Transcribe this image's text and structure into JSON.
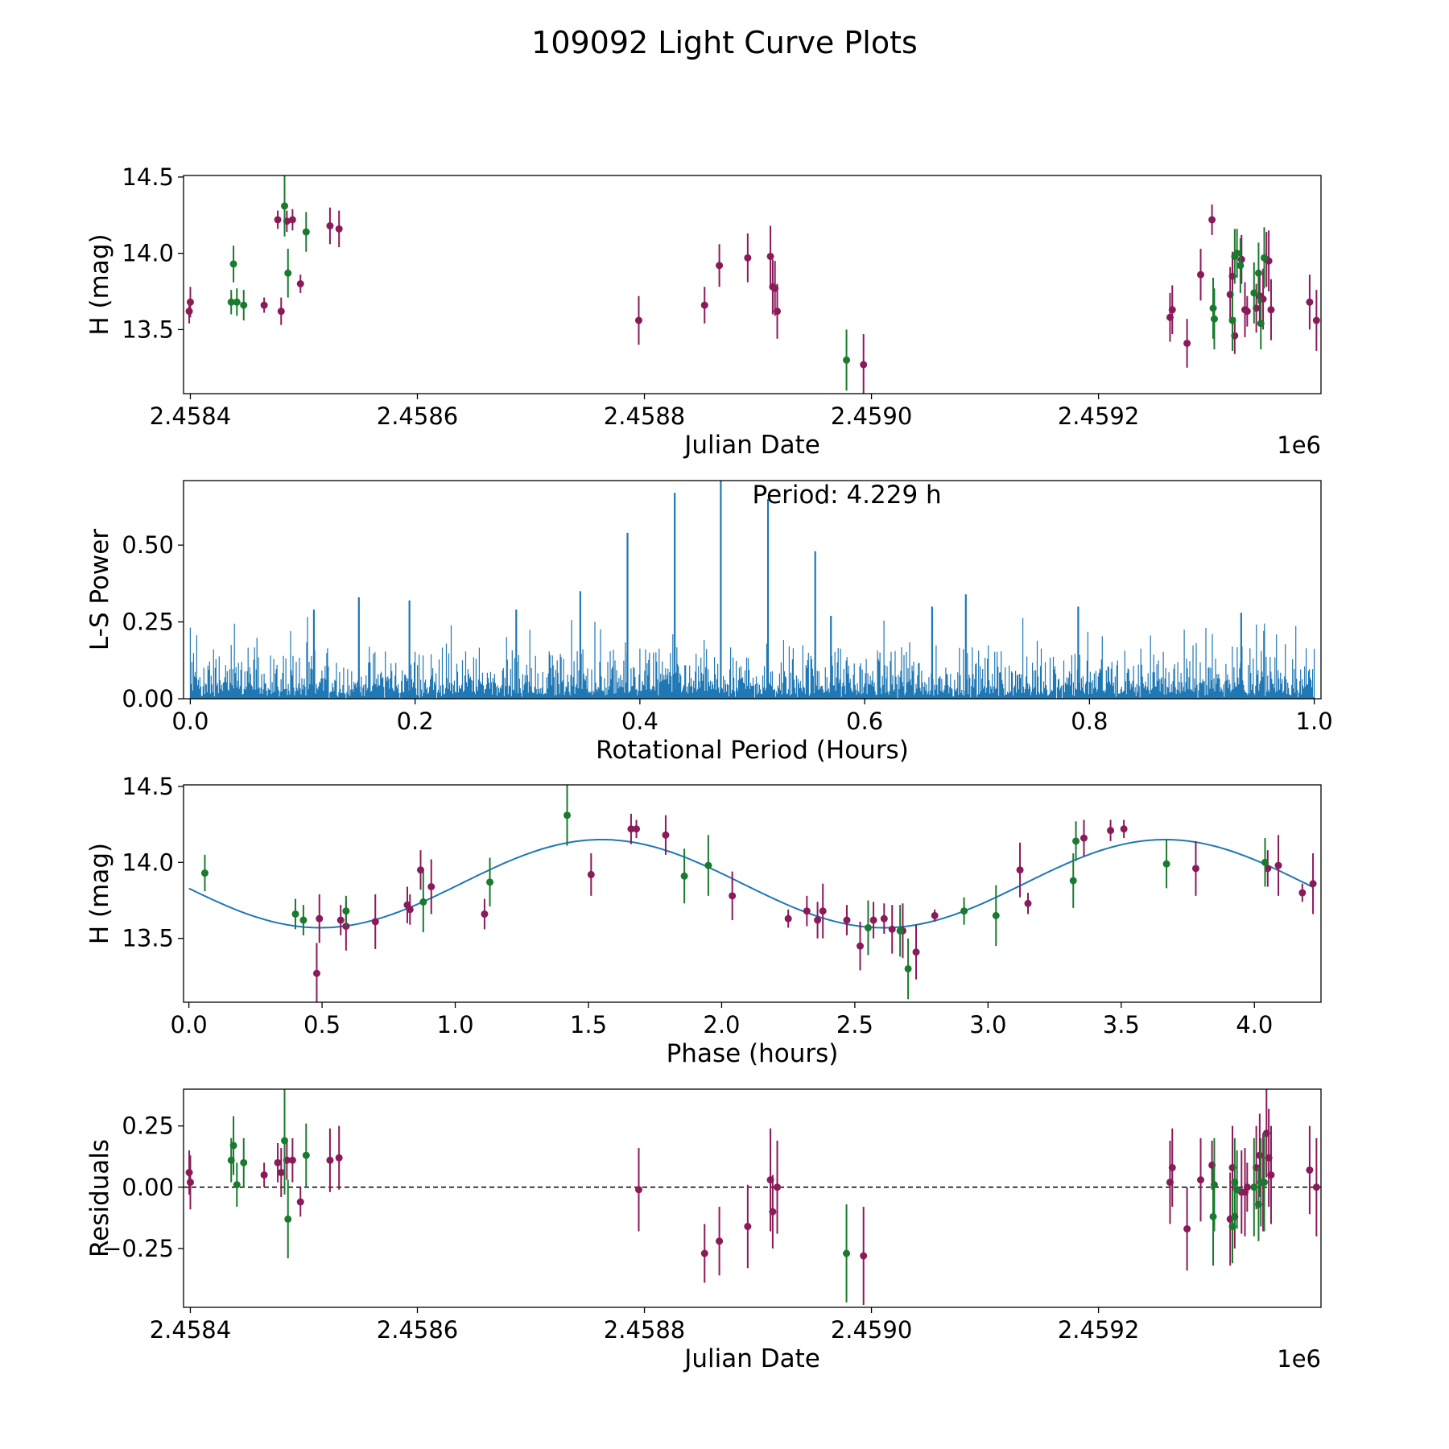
{
  "title": "109092 Light Curve Plots",
  "colors": {
    "purple": "#8b1a5a",
    "green": "#1a7a2e",
    "blue": "#1f77b4",
    "black": "#000000"
  },
  "chart_data": [
    {
      "type": "scatter",
      "name": "light-curve",
      "xlabel": "Julian Date",
      "ylabel": "H (mag)",
      "offset_label": "1e6",
      "xlim": [
        2458394,
        2459396
      ],
      "ylim": [
        13.08,
        14.51
      ],
      "xticks": [
        2458400,
        2458600,
        2458800,
        2459000,
        2459200
      ],
      "xtick_labels": [
        "2.4584",
        "2.4586",
        "2.4588",
        "2.4590",
        "2.4592"
      ],
      "yticks": [
        13.5,
        14.0,
        14.5
      ],
      "ytick_labels": [
        "13.5",
        "14.0",
        "14.5"
      ],
      "series": [
        {
          "name": "purple",
          "color": "#8b1a5a",
          "points": [
            [
              2458399,
              13.62,
              0.08
            ],
            [
              2458400,
              13.68,
              0.1
            ],
            [
              2458465,
              13.66,
              0.05
            ],
            [
              2458477,
              14.22,
              0.06
            ],
            [
              2458480,
              13.62,
              0.09
            ],
            [
              2458485,
              14.21,
              0.07
            ],
            [
              2458490,
              14.22,
              0.07
            ],
            [
              2458497,
              13.8,
              0.06
            ],
            [
              2458523,
              14.18,
              0.12
            ],
            [
              2458531,
              14.16,
              0.12
            ],
            [
              2458795,
              13.56,
              0.16
            ],
            [
              2458853,
              13.66,
              0.12
            ],
            [
              2458866,
              13.92,
              0.14
            ],
            [
              2458891,
              13.97,
              0.16
            ],
            [
              2458911,
              13.98,
              0.2
            ],
            [
              2458913,
              13.78,
              0.18
            ],
            [
              2458915,
              13.77,
              0.18
            ],
            [
              2458917,
              13.62,
              0.18
            ],
            [
              2458993,
              13.27,
              0.2
            ],
            [
              2459263,
              13.58,
              0.16
            ],
            [
              2459265,
              13.63,
              0.16
            ],
            [
              2459278,
              13.41,
              0.16
            ],
            [
              2459290,
              13.86,
              0.17
            ],
            [
              2459300,
              14.22,
              0.1
            ],
            [
              2459316,
              13.73,
              0.18
            ],
            [
              2459318,
              13.85,
              0.16
            ],
            [
              2459320,
              13.46,
              0.12
            ],
            [
              2459326,
              13.96,
              0.16
            ],
            [
              2459329,
              13.63,
              0.18
            ],
            [
              2459331,
              13.62,
              0.1
            ],
            [
              2459339,
              13.64,
              0.16
            ],
            [
              2459342,
              13.72,
              0.17
            ],
            [
              2459345,
              13.7,
              0.2
            ],
            [
              2459348,
              13.96,
              0.18
            ],
            [
              2459350,
              13.95,
              0.2
            ],
            [
              2459352,
              13.63,
              0.2
            ],
            [
              2459386,
              13.68,
              0.18
            ],
            [
              2459392,
              13.56,
              0.2
            ]
          ]
        },
        {
          "name": "green",
          "color": "#1a7a2e",
          "points": [
            [
              2458436,
              13.68,
              0.08
            ],
            [
              2458438,
              13.93,
              0.12
            ],
            [
              2458441,
              13.68,
              0.09
            ],
            [
              2458447,
              13.66,
              0.1
            ],
            [
              2458483,
              14.31,
              0.2
            ],
            [
              2458486,
              13.87,
              0.16
            ],
            [
              2458502,
              14.14,
              0.13
            ],
            [
              2458978,
              13.3,
              0.2
            ],
            [
              2459301,
              13.64,
              0.2
            ],
            [
              2459302,
              13.57,
              0.2
            ],
            [
              2459318,
              13.56,
              0.2
            ],
            [
              2459320,
              13.98,
              0.18
            ],
            [
              2459322,
              14.0,
              0.16
            ],
            [
              2459325,
              13.92,
              0.18
            ],
            [
              2459337,
              13.74,
              0.2
            ],
            [
              2459341,
              13.87,
              0.2
            ],
            [
              2459343,
              13.54,
              0.17
            ],
            [
              2459346,
              13.97,
              0.2
            ]
          ]
        }
      ]
    },
    {
      "type": "line",
      "name": "periodogram",
      "xlabel": "Rotational Period (Hours)",
      "ylabel": "L-S Power",
      "annotation": "Period: 4.229 h",
      "xlim": [
        -0.006,
        1.006
      ],
      "ylim": [
        0.0,
        0.71
      ],
      "xticks": [
        0.0,
        0.2,
        0.4,
        0.6,
        0.8,
        1.0
      ],
      "xtick_labels": [
        "0.0",
        "0.2",
        "0.4",
        "0.6",
        "0.8",
        "1.0"
      ],
      "yticks": [
        0.0,
        0.25,
        0.5
      ],
      "ytick_labels": [
        "0.00",
        "0.25",
        "0.50"
      ],
      "x_range": [
        0.0,
        1.0
      ],
      "noise_baseline": 0.15,
      "peaks": [
        {
          "x": 0.389,
          "y": 0.54
        },
        {
          "x": 0.431,
          "y": 0.67
        },
        {
          "x": 0.472,
          "y": 0.71
        },
        {
          "x": 0.514,
          "y": 0.65
        },
        {
          "x": 0.556,
          "y": 0.48
        },
        {
          "x": 0.15,
          "y": 0.33
        },
        {
          "x": 0.11,
          "y": 0.29
        },
        {
          "x": 0.195,
          "y": 0.32
        },
        {
          "x": 0.347,
          "y": 0.35
        },
        {
          "x": 0.29,
          "y": 0.29
        },
        {
          "x": 0.69,
          "y": 0.34
        },
        {
          "x": 0.79,
          "y": 0.3
        },
        {
          "x": 0.935,
          "y": 0.28
        },
        {
          "x": 0.57,
          "y": 0.27
        },
        {
          "x": 0.66,
          "y": 0.3
        }
      ]
    },
    {
      "type": "scatter",
      "name": "phase-folded",
      "xlabel": "Phase (hours)",
      "ylabel": "H (mag)",
      "xlim": [
        -0.02,
        4.25
      ],
      "ylim": [
        13.08,
        14.51
      ],
      "xticks": [
        0.0,
        0.5,
        1.0,
        1.5,
        2.0,
        2.5,
        3.0,
        3.5,
        4.0
      ],
      "xtick_labels": [
        "0.0",
        "0.5",
        "1.0",
        "1.5",
        "2.0",
        "2.5",
        "3.0",
        "3.5",
        "4.0"
      ],
      "yticks": [
        13.5,
        14.0,
        14.5
      ],
      "ytick_labels": [
        "13.5",
        "14.0",
        "14.5"
      ],
      "fit": {
        "mean": 13.86,
        "amplitude": 0.29,
        "period_hours": 2.1145,
        "phase_at_max": 1.55,
        "x_range": [
          0.0,
          4.22
        ]
      },
      "series": [
        {
          "name": "purple",
          "color": "#8b1a5a",
          "points": [
            [
              0.48,
              13.27,
              0.2
            ],
            [
              0.49,
              13.63,
              0.16
            ],
            [
              0.57,
              13.62,
              0.1
            ],
            [
              0.59,
              13.58,
              0.16
            ],
            [
              0.7,
              13.61,
              0.18
            ],
            [
              0.82,
              13.72,
              0.12
            ],
            [
              0.83,
              13.69,
              0.1
            ],
            [
              0.87,
              13.95,
              0.13
            ],
            [
              0.91,
              13.84,
              0.18
            ],
            [
              1.11,
              13.66,
              0.1
            ],
            [
              1.51,
              13.92,
              0.14
            ],
            [
              1.66,
              14.22,
              0.1
            ],
            [
              1.68,
              14.22,
              0.06
            ],
            [
              1.79,
              14.18,
              0.13
            ],
            [
              2.04,
              13.78,
              0.16
            ],
            [
              2.25,
              13.63,
              0.06
            ],
            [
              2.32,
              13.68,
              0.1
            ],
            [
              2.36,
              13.62,
              0.12
            ],
            [
              2.38,
              13.68,
              0.18
            ],
            [
              2.47,
              13.62,
              0.1
            ],
            [
              2.52,
              13.45,
              0.16
            ],
            [
              2.57,
              13.62,
              0.12
            ],
            [
              2.61,
              13.63,
              0.1
            ],
            [
              2.64,
              13.56,
              0.16
            ],
            [
              2.68,
              13.55,
              0.18
            ],
            [
              2.73,
              13.41,
              0.18
            ],
            [
              2.8,
              13.65,
              0.04
            ],
            [
              3.12,
              13.95,
              0.18
            ],
            [
              3.15,
              13.73,
              0.07
            ],
            [
              3.36,
              14.16,
              0.12
            ],
            [
              3.46,
              14.21,
              0.07
            ],
            [
              3.51,
              14.22,
              0.06
            ],
            [
              3.78,
              13.96,
              0.18
            ],
            [
              4.05,
              13.96,
              0.12
            ],
            [
              4.09,
              13.98,
              0.2
            ],
            [
              4.18,
              13.8,
              0.06
            ],
            [
              4.22,
              13.86,
              0.2
            ]
          ]
        },
        {
          "name": "green",
          "color": "#1a7a2e",
          "points": [
            [
              0.06,
              13.93,
              0.12
            ],
            [
              0.4,
              13.66,
              0.1
            ],
            [
              0.43,
              13.62,
              0.1
            ],
            [
              0.59,
              13.68,
              0.1
            ],
            [
              0.88,
              13.74,
              0.2
            ],
            [
              1.13,
              13.87,
              0.16
            ],
            [
              1.42,
              14.31,
              0.2
            ],
            [
              1.86,
              13.91,
              0.18
            ],
            [
              1.95,
              13.98,
              0.2
            ],
            [
              2.55,
              13.57,
              0.18
            ],
            [
              2.67,
              13.55,
              0.17
            ],
            [
              2.7,
              13.3,
              0.2
            ],
            [
              2.91,
              13.68,
              0.09
            ],
            [
              3.03,
              13.65,
              0.2
            ],
            [
              3.32,
              13.88,
              0.18
            ],
            [
              3.33,
              14.14,
              0.13
            ],
            [
              3.67,
              13.99,
              0.16
            ],
            [
              4.04,
              14.0,
              0.16
            ]
          ]
        }
      ]
    },
    {
      "type": "scatter",
      "name": "residuals",
      "xlabel": "Julian Date",
      "ylabel": "Residuals",
      "offset_label": "1e6",
      "xlim": [
        2458394,
        2459396
      ],
      "ylim": [
        -0.49,
        0.4
      ],
      "xticks": [
        2458400,
        2458600,
        2458800,
        2459000,
        2459200
      ],
      "xtick_labels": [
        "2.4584",
        "2.4586",
        "2.4588",
        "2.4590",
        "2.4592"
      ],
      "yticks": [
        -0.25,
        0.0,
        0.25
      ],
      "ytick_labels": [
        "−0.25",
        "0.00",
        "0.25"
      ],
      "reference_line": 0.0,
      "series": [
        {
          "name": "purple",
          "color": "#8b1a5a",
          "points": [
            [
              2458399,
              0.06,
              0.09
            ],
            [
              2458400,
              0.02,
              0.11
            ],
            [
              2458465,
              0.05,
              0.05
            ],
            [
              2458477,
              0.1,
              0.08
            ],
            [
              2458480,
              0.06,
              0.1
            ],
            [
              2458485,
              0.11,
              0.08
            ],
            [
              2458490,
              0.11,
              0.09
            ],
            [
              2458497,
              -0.06,
              0.06
            ],
            [
              2458523,
              0.11,
              0.13
            ],
            [
              2458531,
              0.12,
              0.13
            ],
            [
              2458795,
              -0.01,
              0.17
            ],
            [
              2458853,
              -0.27,
              0.12
            ],
            [
              2458866,
              -0.22,
              0.14
            ],
            [
              2458891,
              -0.16,
              0.17
            ],
            [
              2458911,
              0.03,
              0.21
            ],
            [
              2458913,
              -0.1,
              0.15
            ],
            [
              2458917,
              0.0,
              0.19
            ],
            [
              2458993,
              -0.28,
              0.2
            ],
            [
              2459263,
              0.02,
              0.17
            ],
            [
              2459265,
              0.08,
              0.16
            ],
            [
              2459278,
              -0.17,
              0.17
            ],
            [
              2459290,
              0.03,
              0.17
            ],
            [
              2459300,
              0.09,
              0.1
            ],
            [
              2459316,
              -0.13,
              0.19
            ],
            [
              2459318,
              0.08,
              0.17
            ],
            [
              2459320,
              -0.12,
              0.13
            ],
            [
              2459326,
              -0.02,
              0.17
            ],
            [
              2459329,
              -0.02,
              0.18
            ],
            [
              2459331,
              0.0,
              0.1
            ],
            [
              2459339,
              0.08,
              0.17
            ],
            [
              2459342,
              0.13,
              0.17
            ],
            [
              2459345,
              0.02,
              0.2
            ],
            [
              2459348,
              0.22,
              0.18
            ],
            [
              2459350,
              0.12,
              0.2
            ],
            [
              2459352,
              0.05,
              0.2
            ],
            [
              2459386,
              0.07,
              0.18
            ],
            [
              2459392,
              0.0,
              0.2
            ]
          ]
        },
        {
          "name": "green",
          "color": "#1a7a2e",
          "points": [
            [
              2458436,
              0.11,
              0.09
            ],
            [
              2458438,
              0.17,
              0.12
            ],
            [
              2458441,
              0.01,
              0.09
            ],
            [
              2458447,
              0.1,
              0.1
            ],
            [
              2458483,
              0.19,
              0.22
            ],
            [
              2458486,
              -0.13,
              0.16
            ],
            [
              2458502,
              0.13,
              0.13
            ],
            [
              2458978,
              -0.27,
              0.2
            ],
            [
              2459301,
              -0.12,
              0.2
            ],
            [
              2459302,
              0.01,
              0.19
            ],
            [
              2459318,
              -0.16,
              0.15
            ],
            [
              2459320,
              0.02,
              0.18
            ],
            [
              2459322,
              -0.01,
              0.16
            ],
            [
              2459337,
              0.0,
              0.2
            ],
            [
              2459341,
              -0.07,
              0.15
            ],
            [
              2459343,
              0.02,
              0.18
            ],
            [
              2459346,
              0.02,
              0.2
            ]
          ]
        }
      ]
    }
  ]
}
